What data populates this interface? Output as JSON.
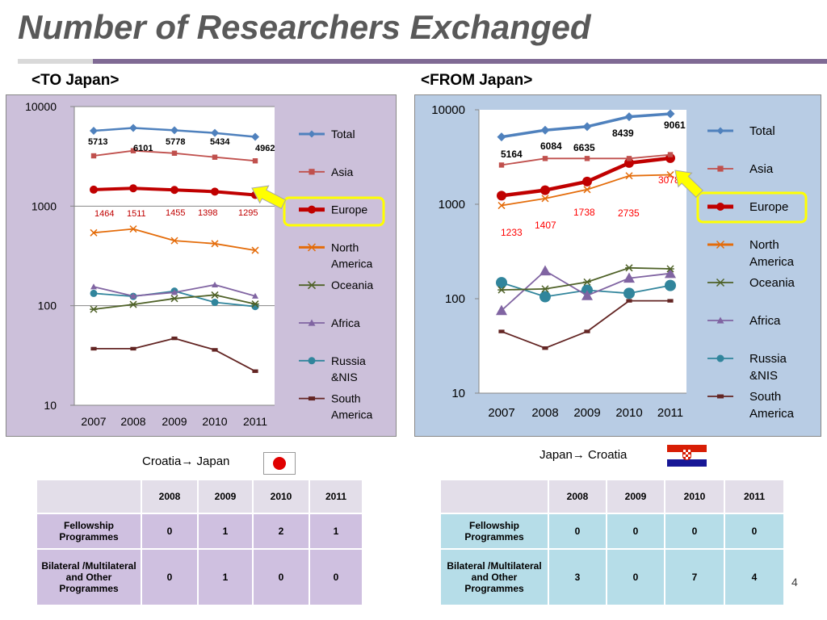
{
  "slide": {
    "title": "Number of Researchers Exchanged",
    "page_number": "4"
  },
  "colors": {
    "title_rule": "#7f6a94",
    "to_panel_bg": "#ccc0da",
    "from_panel_bg": "#b8cce4",
    "highlight_box": "#ffff00",
    "total": "#4f81bd",
    "asia": "#c0504d",
    "europe": "#c00000",
    "north_america": "#e46c0a",
    "oceania": "#4f6228",
    "africa": "#8064a2",
    "russia": "#31859c",
    "south_america": "#632523"
  },
  "legend": [
    "Total",
    "Asia",
    "Europe",
    "North America",
    "Oceania",
    "Africa",
    "Russia &NIS",
    "South America"
  ],
  "chart_data": [
    {
      "type": "line",
      "heading": "<TO Japan>",
      "y_scale": "log",
      "ylim": [
        10,
        10000
      ],
      "y_ticks": [
        "10",
        "100",
        "1000",
        "10000"
      ],
      "categories": [
        "2007",
        "2008",
        "2009",
        "2010",
        "2011"
      ],
      "grid": "horizontal",
      "legend_position": "right",
      "highlight": "Europe",
      "series": [
        {
          "name": "Total",
          "values": [
            5713,
            6101,
            5778,
            5434,
            4962
          ],
          "labels": [
            "5713",
            "6101",
            "5778",
            "5434",
            "4962"
          ]
        },
        {
          "name": "Asia",
          "values": [
            3200,
            3600,
            3400,
            3100,
            2850
          ]
        },
        {
          "name": "Europe",
          "values": [
            1464,
            1511,
            1455,
            1398,
            1295
          ],
          "labels": [
            "1464",
            "1511",
            "1455",
            "1398",
            "1295"
          ]
        },
        {
          "name": "North America",
          "values": [
            540,
            590,
            450,
            420,
            360
          ]
        },
        {
          "name": "Oceania",
          "values": [
            92,
            103,
            118,
            128,
            104
          ]
        },
        {
          "name": "Africa",
          "values": [
            155,
            125,
            136,
            162,
            125
          ]
        },
        {
          "name": "Russia &NIS",
          "values": [
            133,
            124,
            140,
            108,
            98
          ]
        },
        {
          "name": "South America",
          "values": [
            37,
            37,
            47,
            36,
            22
          ]
        }
      ]
    },
    {
      "type": "line",
      "heading": "<FROM Japan>",
      "y_scale": "log",
      "ylim": [
        10,
        10000
      ],
      "y_ticks": [
        "10",
        "100",
        "1000",
        "10000"
      ],
      "categories": [
        "2007",
        "2008",
        "2009",
        "2010",
        "2011"
      ],
      "grid": "none",
      "legend_position": "right",
      "highlight": "Europe",
      "series": [
        {
          "name": "Total",
          "values": [
            5164,
            6084,
            6635,
            8439,
            9061
          ],
          "labels": [
            "5164",
            "6084",
            "6635",
            "8439",
            "9061"
          ]
        },
        {
          "name": "Asia",
          "values": [
            2600,
            3050,
            3050,
            3050,
            3350
          ]
        },
        {
          "name": "Europe",
          "values": [
            1233,
            1407,
            1738,
            2735,
            3078
          ],
          "labels": [
            "1233",
            "1407",
            "1738",
            "2735",
            "3078"
          ]
        },
        {
          "name": "North America",
          "values": [
            970,
            1150,
            1430,
            2000,
            2050
          ]
        },
        {
          "name": "Oceania",
          "values": [
            124,
            127,
            150,
            212,
            207
          ]
        },
        {
          "name": "Africa",
          "values": [
            75,
            197,
            108,
            165,
            185
          ]
        },
        {
          "name": "Russia &NIS",
          "values": [
            148,
            105,
            123,
            114,
            138
          ]
        },
        {
          "name": "South America",
          "values": [
            45,
            30,
            45,
            95,
            95
          ]
        }
      ]
    }
  ],
  "tables": {
    "to": {
      "caption": "Croatia→ Japan",
      "headers": [
        "",
        "2008",
        "2009",
        "2010",
        "2011"
      ],
      "rows": [
        {
          "label": "Fellowship Programmes",
          "values": [
            "0",
            "1",
            "2",
            "1"
          ]
        },
        {
          "label": "Bilateral /Multilateral and Other Programmes",
          "values": [
            "0",
            "1",
            "0",
            "0"
          ]
        }
      ]
    },
    "from": {
      "caption": "Japan→ Croatia",
      "headers": [
        "",
        "2008",
        "2009",
        "2010",
        "2011"
      ],
      "rows": [
        {
          "label": "Fellowship Programmes",
          "values": [
            "0",
            "0",
            "0",
            "0"
          ]
        },
        {
          "label": "Bilateral /Multilateral and Other Programmes",
          "values": [
            "3",
            "0",
            "7",
            "4"
          ]
        }
      ]
    }
  }
}
